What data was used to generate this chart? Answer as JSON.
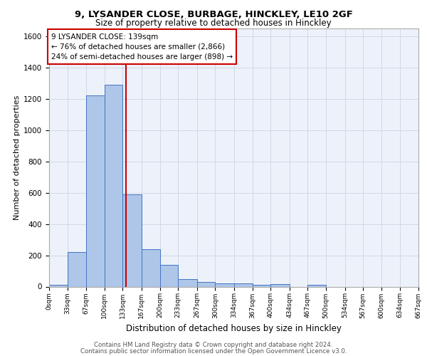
{
  "title_line1": "9, LYSANDER CLOSE, BURBAGE, HINCKLEY, LE10 2GF",
  "title_line2": "Size of property relative to detached houses in Hinckley",
  "xlabel": "Distribution of detached houses by size in Hinckley",
  "ylabel": "Number of detached properties",
  "footer_line1": "Contains HM Land Registry data © Crown copyright and database right 2024.",
  "footer_line2": "Contains public sector information licensed under the Open Government Licence v3.0.",
  "annotation_line1": "9 LYSANDER CLOSE: 139sqm",
  "annotation_line2": "← 76% of detached houses are smaller (2,866)",
  "annotation_line3": "24% of semi-detached houses are larger (898) →",
  "bar_edges": [
    0,
    33,
    67,
    100,
    133,
    167,
    200,
    233,
    267,
    300,
    334,
    367,
    400,
    434,
    467,
    500,
    534,
    567,
    600,
    634,
    667
  ],
  "bar_heights": [
    10,
    220,
    1220,
    1290,
    590,
    240,
    140,
    50,
    30,
    22,
    22,
    10,
    15,
    0,
    12,
    0,
    0,
    0,
    0,
    0
  ],
  "bar_color": "#aec6e8",
  "bar_edge_color": "#4472c4",
  "vline_x": 139,
  "vline_color": "#cc0000",
  "grid_color": "#d0d8e8",
  "background_color": "#edf2fa",
  "ylim": [
    0,
    1650
  ],
  "yticks": [
    0,
    200,
    400,
    600,
    800,
    1000,
    1200,
    1400,
    1600
  ],
  "xtick_labels": [
    "0sqm",
    "33sqm",
    "67sqm",
    "100sqm",
    "133sqm",
    "167sqm",
    "200sqm",
    "233sqm",
    "267sqm",
    "300sqm",
    "334sqm",
    "367sqm",
    "400sqm",
    "434sqm",
    "467sqm",
    "500sqm",
    "534sqm",
    "567sqm",
    "600sqm",
    "634sqm",
    "667sqm"
  ]
}
